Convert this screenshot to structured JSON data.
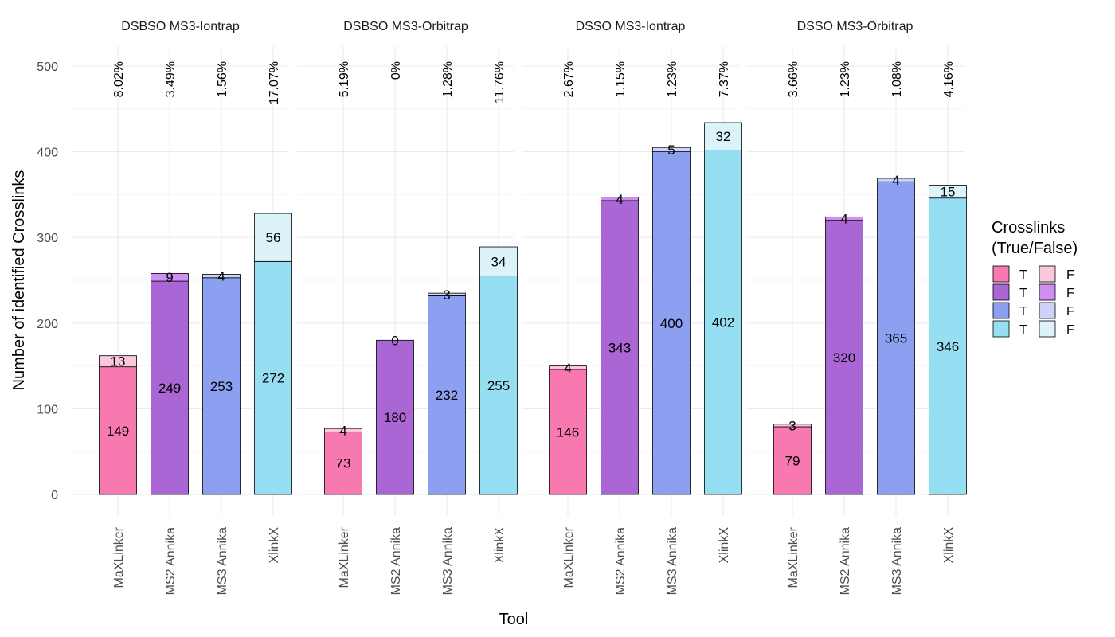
{
  "chart_data": {
    "type": "bar",
    "stacked": true,
    "facets": [
      "DSBSO MS3-Iontrap",
      "DSBSO MS3-Orbitrap",
      "DSSO MS3-Iontrap",
      "DSSO MS3-Orbitrap"
    ],
    "categories": [
      "MaXLinker",
      "MS2 Annika",
      "MS3 Annika",
      "XlinkX"
    ],
    "series": [
      {
        "name": "T",
        "values": [
          [
            149,
            249,
            253,
            272
          ],
          [
            73,
            180,
            232,
            255
          ],
          [
            146,
            343,
            400,
            402
          ],
          [
            79,
            320,
            365,
            346
          ]
        ]
      },
      {
        "name": "F",
        "values": [
          [
            13,
            9,
            4,
            56
          ],
          [
            4,
            0,
            3,
            34
          ],
          [
            4,
            4,
            5,
            32
          ],
          [
            3,
            4,
            4,
            15
          ]
        ]
      }
    ],
    "percent_labels": [
      [
        "8.02%",
        "3.49%",
        "1.56%",
        "17.07%"
      ],
      [
        "5.19%",
        "0%",
        "1.28%",
        "11.76%"
      ],
      [
        "2.67%",
        "1.15%",
        "1.23%",
        "7.37%"
      ],
      [
        "3.66%",
        "1.23%",
        "1.08%",
        "4.16%"
      ]
    ],
    "xlabel": "Tool",
    "ylabel": "Number of identified Crosslinks",
    "ylim": [
      0,
      525
    ],
    "yticks": [
      0,
      100,
      200,
      300,
      400,
      500
    ],
    "legend": {
      "title": "Crosslinks\n(True/False)",
      "position": "right",
      "true_label": "T",
      "false_label": "F"
    },
    "colors": {
      "true": [
        "#f878b0",
        "#a966d4",
        "#8c9ff0",
        "#96dff2"
      ],
      "false": [
        "#f9c8dd",
        "#cf8ff0",
        "#cdd4f7",
        "#ddf3fb"
      ]
    }
  }
}
